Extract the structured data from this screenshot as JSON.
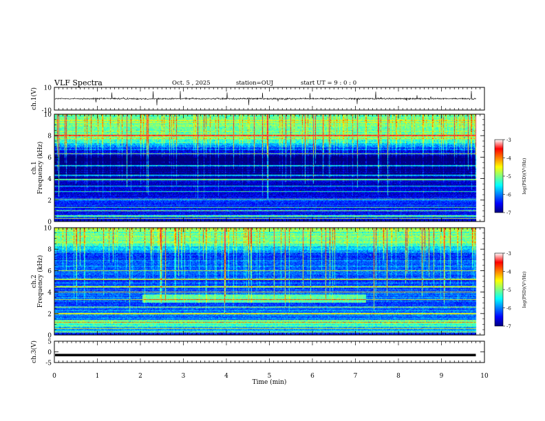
{
  "header": {
    "title": "VLF Spectra",
    "date": "Oct. 5  , 2025",
    "station": "station=OUJ",
    "start_ut": "start  UT =   9 : 0  : 0"
  },
  "chart_data": {
    "type": "heatmap",
    "title": "VLF Spectra",
    "xlabel": "Time  (min)",
    "x_range": [
      0,
      10
    ],
    "x_ticks": [
      "0",
      "1",
      "2",
      "3",
      "4",
      "5",
      "6",
      "7",
      "8",
      "9",
      "10"
    ],
    "panels": [
      {
        "name": "ch1-waveform",
        "kind": "waveform",
        "ylabel": "ch.1(V)",
        "y_range": [
          -10,
          10
        ],
        "y_ticks": [
          "10",
          "-10"
        ]
      },
      {
        "name": "ch1-spectrogram",
        "kind": "spectrogram",
        "ylabel_line1": "ch.1",
        "ylabel_line2": "Frequency  (kHz)",
        "y_range": [
          0,
          10
        ],
        "y_ticks": [
          "0",
          "2",
          "4",
          "6",
          "8",
          "10"
        ],
        "data_end_min": 9.8,
        "background_level": -6.6,
        "upper_band_kHz": [
          6.5,
          10
        ],
        "upper_band_level": -5.0,
        "tone_lines_kHz": [
          0.3,
          0.5,
          1.0,
          1.3,
          2.1,
          2.8,
          3.3,
          3.9,
          4.3,
          5.2,
          6.3,
          8.0
        ]
      },
      {
        "name": "ch2-spectrogram",
        "kind": "spectrogram",
        "ylabel_line1": "ch.2",
        "ylabel_line2": "Frequency  (kHz)",
        "y_range": [
          0,
          10
        ],
        "y_ticks": [
          "0",
          "2",
          "4",
          "6",
          "8",
          "10"
        ],
        "data_end_min": 9.8,
        "background_level": -6.2,
        "upper_band_kHz": [
          7.5,
          10
        ],
        "upper_band_level": -5.0,
        "enhanced_band": {
          "t_start_min": 2.05,
          "t_end_min": 7.25,
          "f_low_kHz": 3.0,
          "f_high_kHz": 3.8
        },
        "lower_band": {
          "f_low_kHz": 0.8,
          "f_high_kHz": 1.4
        },
        "tone_lines_kHz": [
          0.3,
          0.6,
          1.2,
          2.0,
          2.6,
          3.3,
          4.0,
          4.5,
          5.2,
          6.0
        ]
      },
      {
        "name": "ch3-waveform",
        "kind": "waveform",
        "ylabel": "ch.3(V)",
        "y_range": [
          -5,
          5
        ],
        "y_ticks": [
          "5",
          "0",
          "-5"
        ],
        "constant_value": -1.5
      }
    ],
    "colorbar": {
      "label": "log(PSD)(V²/Hz)",
      "range": [
        -7,
        -3
      ],
      "ticks": [
        "-3",
        "-4",
        "-5",
        "-6",
        "-7"
      ],
      "colormap": "jet"
    }
  }
}
